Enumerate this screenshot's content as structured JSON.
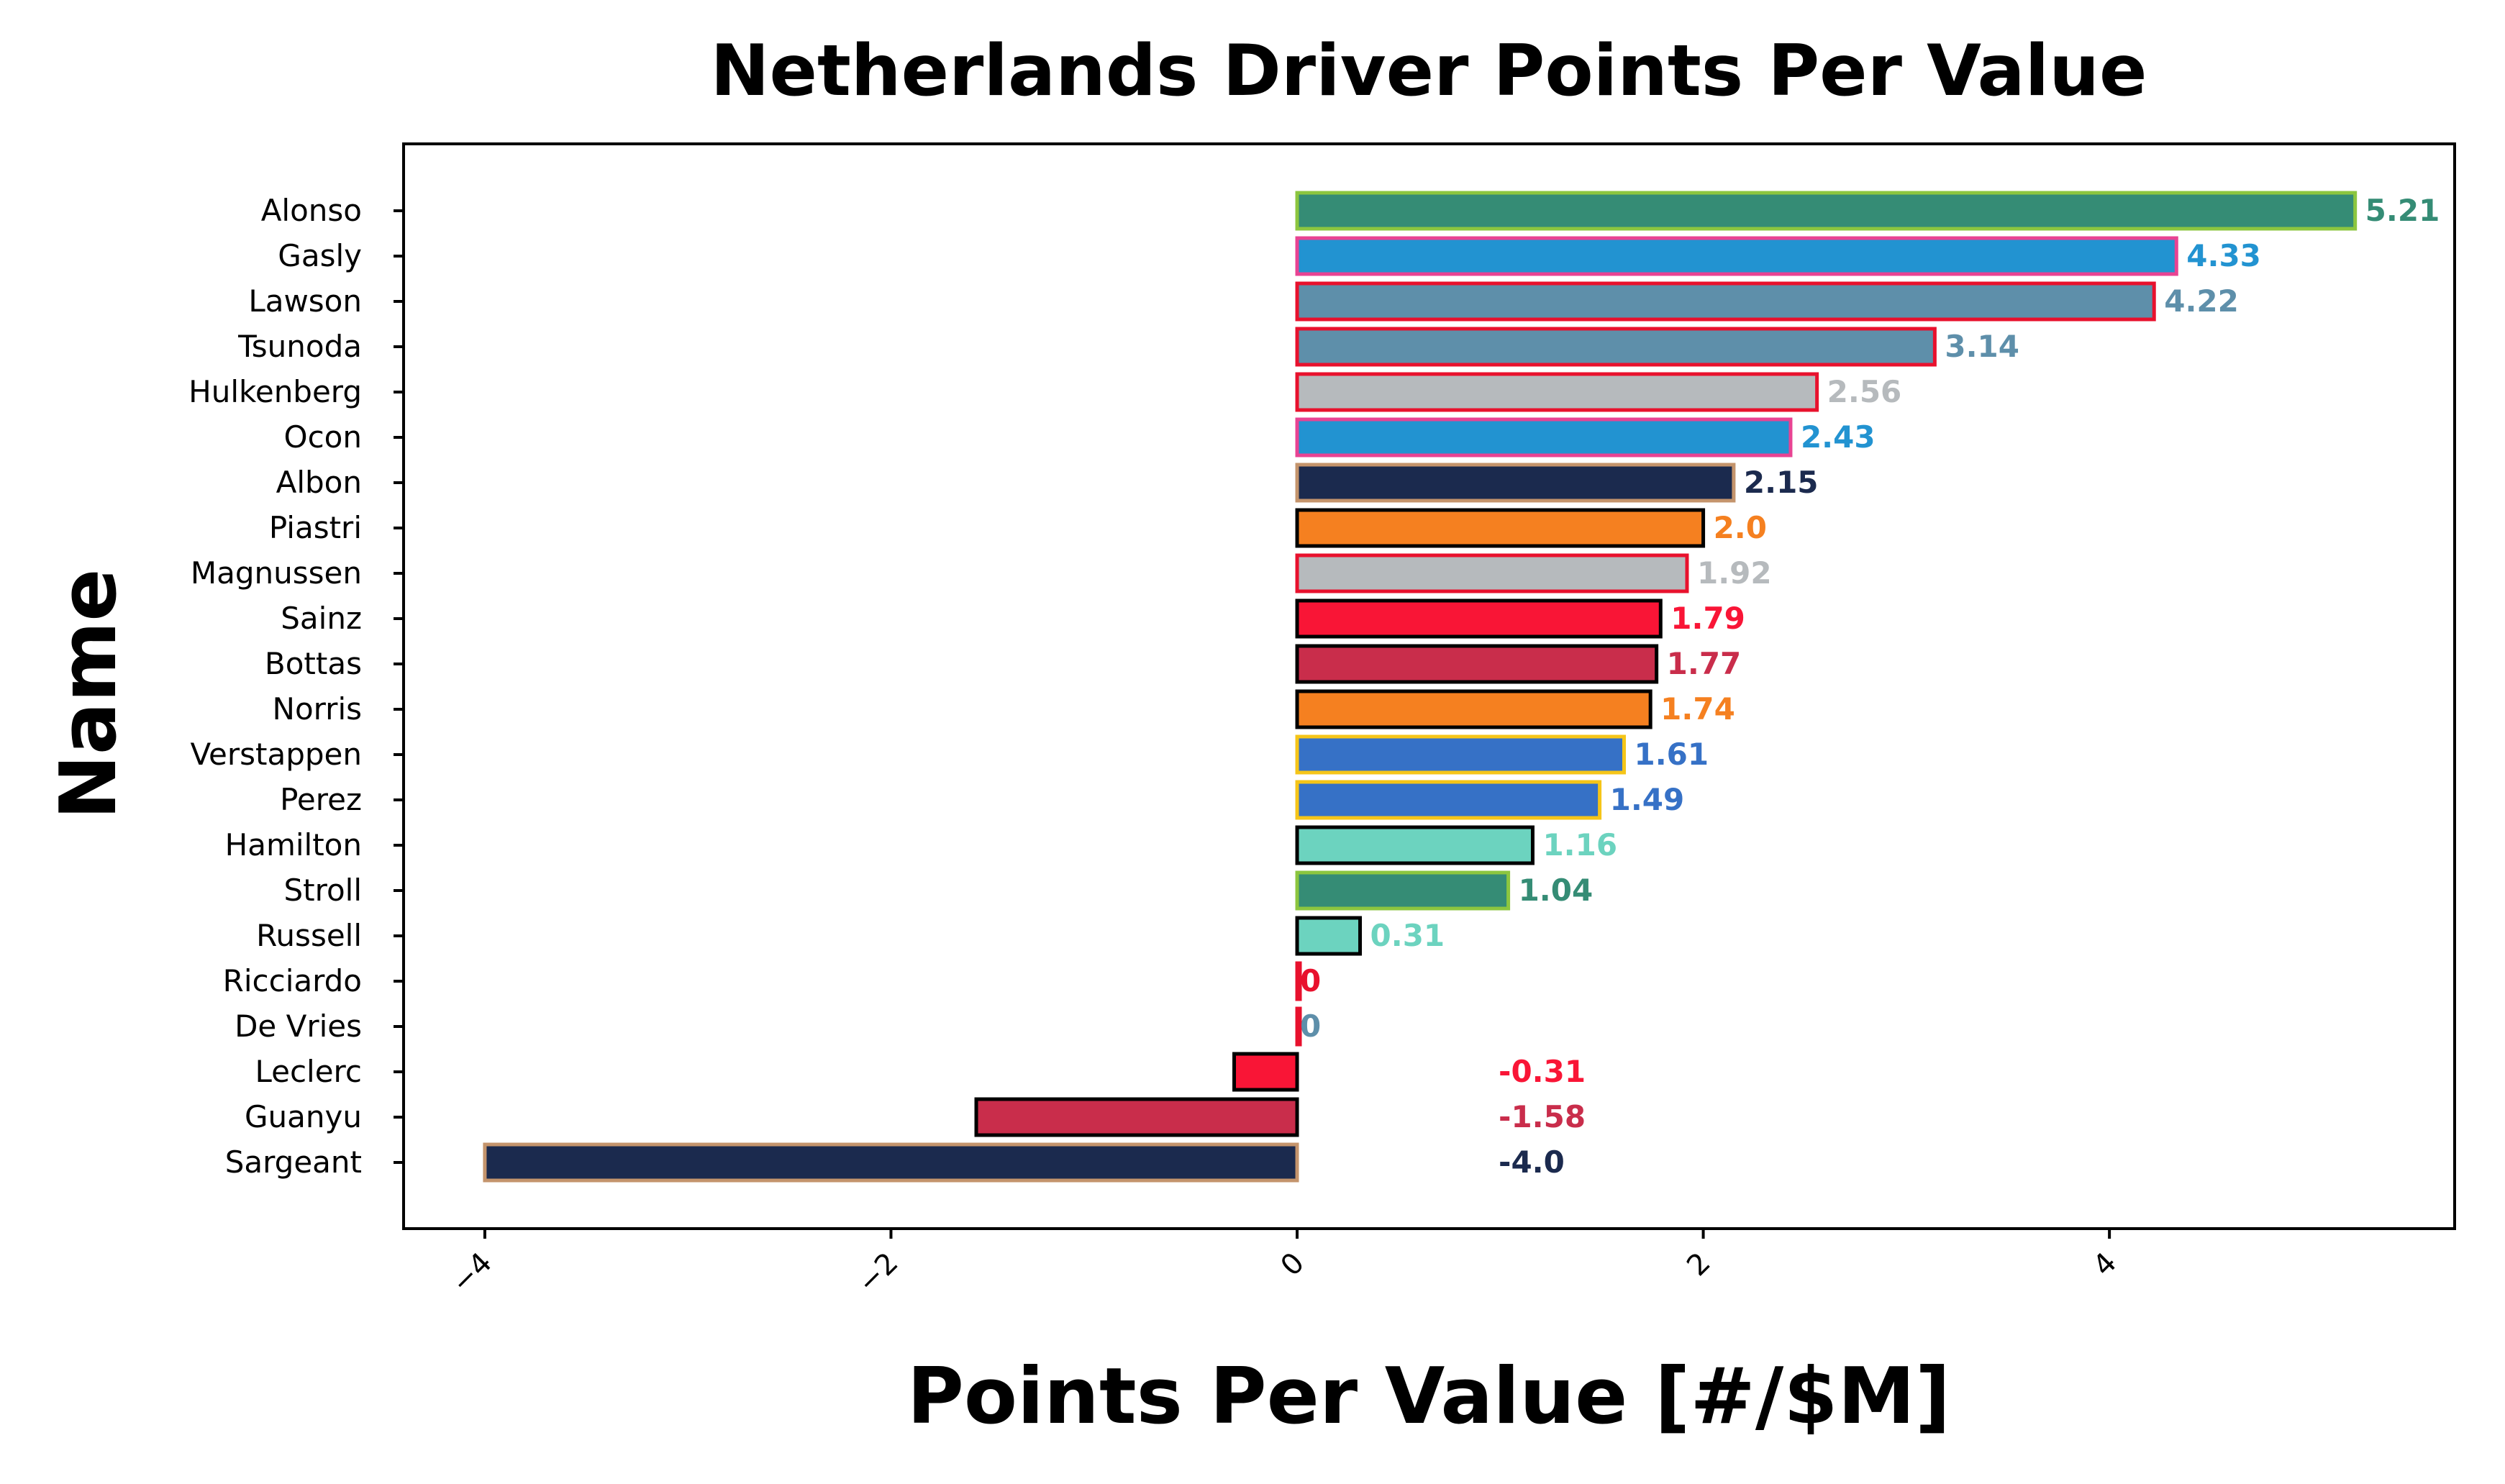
{
  "chart_data": {
    "type": "bar",
    "orientation": "horizontal",
    "title": "Netherlands Driver Points Per Value",
    "xlabel": "Points Per Value [#/$M]",
    "ylabel": "Name",
    "xlim": [
      -4.4,
      5.7
    ],
    "xticks": [
      -4,
      -2,
      0,
      2,
      4
    ],
    "xtick_labels": [
      "−4",
      "−2",
      "0",
      "2",
      "4"
    ],
    "grid": false,
    "legend": "none",
    "categories": [
      "Alonso",
      "Gasly",
      "Lawson",
      "Tsunoda",
      "Hulkenberg",
      "Ocon",
      "Albon",
      "Piastri",
      "Magnussen",
      "Sainz",
      "Bottas",
      "Norris",
      "Verstappen",
      "Perez",
      "Hamilton",
      "Stroll",
      "Russell",
      "Ricciardo",
      "De Vries",
      "Leclerc",
      "Guanyu",
      "Sargeant"
    ],
    "values": [
      5.21,
      4.33,
      4.22,
      3.14,
      2.56,
      2.43,
      2.15,
      2.0,
      1.92,
      1.79,
      1.77,
      1.74,
      1.61,
      1.49,
      1.16,
      1.04,
      0.31,
      0,
      0,
      -0.31,
      -1.58,
      -4.0
    ],
    "value_labels": [
      "5.21",
      "4.33",
      "4.22",
      "3.14",
      "2.56",
      "2.43",
      "2.15",
      "2.0",
      "1.92",
      "1.79",
      "1.77",
      "1.74",
      "1.61",
      "1.49",
      "1.16",
      "1.04",
      "0.31",
      "0",
      "0",
      "-0.31",
      "-1.58",
      "-4.0"
    ],
    "fill_colors": [
      "#358C75",
      "#2293D1",
      "#5E8FAA",
      "#5E8FAA",
      "#B6BABD",
      "#2293D1",
      "#1B2A4E",
      "#F58020",
      "#B6BABD",
      "#F91536",
      "#C92D4B",
      "#F58020",
      "#3671C6",
      "#3671C6",
      "#6CD3BF",
      "#358C75",
      "#6CD3BF",
      "#E8112D",
      "#5E8FAA",
      "#F91536",
      "#C92D4B",
      "#1B2A4E"
    ],
    "edge_colors": [
      "#8CC63F",
      "#E84393",
      "#E8112D",
      "#E8112D",
      "#E8112D",
      "#E84393",
      "#C4946C",
      "#000000",
      "#E8112D",
      "#000000",
      "#000000",
      "#000000",
      "#F5C518",
      "#F5C518",
      "#000000",
      "#8CC63F",
      "#000000",
      "#E8112D",
      "#E8112D",
      "#000000",
      "#000000",
      "#C4946C"
    ]
  }
}
